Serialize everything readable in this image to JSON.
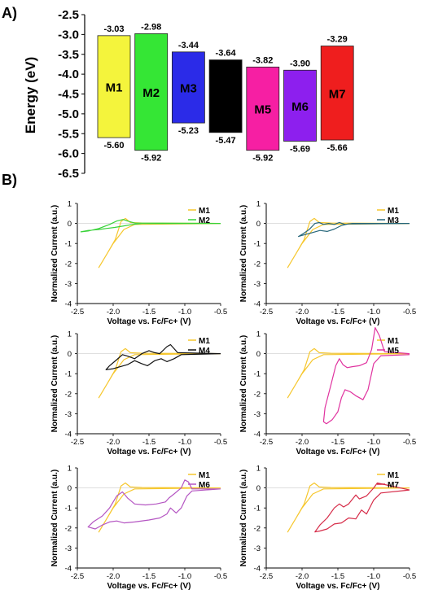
{
  "panel_labels": {
    "a": "A)",
    "b": "B)"
  },
  "chart_data": [
    {
      "type": "bar",
      "panel": "A",
      "ylabel": "Energy (eV)",
      "ylim": [
        -6.5,
        -2.5
      ],
      "yticks": [
        "-2.5",
        "-3.0",
        "-3.5",
        "-4.0",
        "-4.5",
        "-5.0",
        "-5.5",
        "-6.0",
        "-6.5"
      ],
      "categories": [
        "M1",
        "M2",
        "M3",
        "M4",
        "M5",
        "M6",
        "M7"
      ],
      "lumo": [
        -3.03,
        -2.98,
        -3.44,
        -3.64,
        -3.82,
        -3.9,
        -3.29
      ],
      "homo": [
        -5.6,
        -5.92,
        -5.23,
        -5.47,
        -5.92,
        -5.69,
        -5.66
      ],
      "lumo_labels": [
        "-3.03",
        "-2.98",
        "-3.44",
        "-3.64",
        "-3.82",
        "-3.90",
        "-3.29"
      ],
      "homo_labels": [
        "-5.60",
        "-5.92",
        "-5.23",
        "-5.47",
        "-5.92",
        "-5.69",
        "-5.66"
      ],
      "bar_labels": [
        "M1",
        "M2",
        "M3",
        "",
        "M5",
        "M6",
        "M7"
      ],
      "colors": [
        "#f4f43c",
        "#35e635",
        "#2b2be8",
        "#000000",
        "#f61fa3",
        "#8d1fee",
        "#ef1e1e"
      ]
    },
    {
      "type": "line",
      "panel": "B1",
      "xlabel": "Voltage vs. Fc/Fc+ (V)",
      "ylabel": "Normalized Current (a.u.)",
      "xlim": [
        -2.5,
        -0.5
      ],
      "ylim": [
        -4,
        1
      ],
      "xticks": [
        "-2.5",
        "-2.0",
        "-1.5",
        "-1.0",
        "-0.5"
      ],
      "yticks": [
        "1",
        "0",
        "-1",
        "-2",
        "-3",
        "-4"
      ],
      "series": [
        {
          "name": "M1",
          "color": "#f6c72e",
          "x": [
            -0.5,
            -1.7,
            -1.85,
            -2.0,
            -2.15,
            -2.2,
            -2.1,
            -1.97,
            -1.89,
            -1.83,
            -1.76,
            -1.6,
            -0.5
          ],
          "y": [
            0.0,
            -0.05,
            -0.3,
            -1.0,
            -1.9,
            -2.2,
            -1.6,
            -0.8,
            0.1,
            0.25,
            0.05,
            0.02,
            0.0
          ]
        },
        {
          "name": "M2",
          "color": "#39d239",
          "x": [
            -0.5,
            -1.6,
            -1.73,
            -1.85,
            -1.98,
            -2.1,
            -2.2,
            -2.35,
            -2.45,
            -2.35,
            -2.2,
            -2.05,
            -1.95,
            -1.86,
            -1.8,
            -1.7,
            -0.5
          ],
          "y": [
            0.0,
            0.0,
            -0.05,
            -0.12,
            -0.2,
            -0.25,
            -0.3,
            -0.35,
            -0.42,
            -0.38,
            -0.25,
            -0.05,
            0.12,
            0.2,
            0.12,
            0.02,
            0.0
          ]
        }
      ]
    },
    {
      "type": "line",
      "panel": "B2",
      "xlabel": "Voltage vs. Fc/Fc+ (V)",
      "ylabel": "Normalized Current (a.u.)",
      "xlim": [
        -2.5,
        -0.5
      ],
      "ylim": [
        -4,
        1
      ],
      "xticks": [
        "-2.5",
        "-2.0",
        "-1.5",
        "-1.0",
        "-0.5"
      ],
      "yticks": [
        "1",
        "0",
        "-1",
        "-2",
        "-3",
        "-4"
      ],
      "series": [
        {
          "name": "M1",
          "color": "#f6c72e",
          "x": [
            -0.5,
            -1.7,
            -1.85,
            -2.0,
            -2.15,
            -2.2,
            -2.1,
            -1.97,
            -1.89,
            -1.83,
            -1.76,
            -1.6,
            -0.5
          ],
          "y": [
            0.0,
            -0.05,
            -0.3,
            -1.0,
            -1.9,
            -2.2,
            -1.6,
            -0.8,
            0.1,
            0.25,
            0.05,
            0.02,
            0.0
          ]
        },
        {
          "name": "M3",
          "color": "#26667a",
          "x": [
            -0.5,
            -1.35,
            -1.45,
            -1.55,
            -1.65,
            -1.75,
            -1.85,
            -1.95,
            -2.05,
            -1.98,
            -1.9,
            -1.82,
            -1.76,
            -1.7,
            -1.63,
            -1.55,
            -1.48,
            -1.4,
            -1.3,
            -0.5
          ],
          "y": [
            0.0,
            -0.02,
            -0.1,
            -0.28,
            -0.4,
            -0.35,
            -0.45,
            -0.55,
            -0.65,
            -0.5,
            -0.3,
            0.0,
            0.05,
            -0.05,
            0.0,
            -0.05,
            0.05,
            -0.05,
            0.0,
            0.0
          ]
        }
      ]
    },
    {
      "type": "line",
      "panel": "B3",
      "xlabel": "Voltage vs. Fc/Fc+ (V)",
      "ylabel": "Normalized Current (a.u.)",
      "xlim": [
        -2.5,
        -0.5
      ],
      "ylim": [
        -4,
        1
      ],
      "xticks": [
        "-2.5",
        "-2.0",
        "-1.5",
        "-1.0",
        "-0.5"
      ],
      "yticks": [
        "1",
        "0",
        "-1",
        "-2",
        "-3",
        "-4"
      ],
      "series": [
        {
          "name": "M1",
          "color": "#f6c72e",
          "x": [
            -0.5,
            -1.7,
            -1.85,
            -2.0,
            -2.15,
            -2.2,
            -2.1,
            -1.97,
            -1.89,
            -1.83,
            -1.76,
            -1.6,
            -0.5
          ],
          "y": [
            0.0,
            -0.05,
            -0.3,
            -1.0,
            -1.9,
            -2.2,
            -1.6,
            -0.8,
            0.1,
            0.25,
            0.05,
            0.02,
            0.0
          ]
        },
        {
          "name": "M4",
          "color": "#111111",
          "x": [
            -0.5,
            -1.05,
            -1.15,
            -1.25,
            -1.33,
            -1.42,
            -1.52,
            -1.6,
            -1.7,
            -1.8,
            -1.9,
            -2.0,
            -2.1,
            -2.05,
            -1.95,
            -1.87,
            -1.8,
            -1.7,
            -1.6,
            -1.5,
            -1.42,
            -1.35,
            -1.25,
            -1.2,
            -1.1,
            -0.5
          ],
          "y": [
            0.0,
            -0.05,
            -0.25,
            -0.4,
            -0.25,
            -0.35,
            -0.6,
            -0.5,
            -0.35,
            -0.55,
            -0.65,
            -0.75,
            -0.8,
            -0.6,
            -0.3,
            -0.05,
            -0.12,
            -0.25,
            0.0,
            0.15,
            0.05,
            0.0,
            0.35,
            0.45,
            0.05,
            0.0
          ]
        }
      ]
    },
    {
      "type": "line",
      "panel": "B4",
      "xlabel": "Voltage vs. Fc/Fc+ (V)",
      "ylabel": "Normalized Current (a.u.)",
      "xlim": [
        -2.5,
        -0.5
      ],
      "ylim": [
        -4,
        1
      ],
      "xticks": [
        "-2.5",
        "-2.0",
        "-1.5",
        "-1.0",
        "-0.5"
      ],
      "yticks": [
        "1",
        "0",
        "-1",
        "-2",
        "-3",
        "-4"
      ],
      "series": [
        {
          "name": "M1",
          "color": "#f6c72e",
          "x": [
            -0.5,
            -1.7,
            -1.85,
            -2.0,
            -2.15,
            -2.2,
            -2.1,
            -1.97,
            -1.89,
            -1.83,
            -1.76,
            -1.6,
            -0.5
          ],
          "y": [
            0.0,
            -0.05,
            -0.3,
            -1.0,
            -1.9,
            -2.2,
            -1.6,
            -0.8,
            0.1,
            0.25,
            0.05,
            0.02,
            0.0
          ]
        },
        {
          "name": "M5",
          "color": "#e0339f",
          "x": [
            -0.5,
            -0.9,
            -1.0,
            -1.08,
            -1.15,
            -1.25,
            -1.33,
            -1.4,
            -1.45,
            -1.5,
            -1.58,
            -1.66,
            -1.7,
            -1.68,
            -1.6,
            -1.53,
            -1.48,
            -1.43,
            -1.37,
            -1.3,
            -1.2,
            -1.1,
            -1.03,
            -0.98,
            -0.92,
            -0.85,
            -0.5
          ],
          "y": [
            -0.05,
            -0.1,
            -0.5,
            -1.8,
            -2.3,
            -2.1,
            -1.9,
            -1.8,
            -2.2,
            -2.9,
            -3.3,
            -3.5,
            -3.4,
            -2.7,
            -1.6,
            -0.6,
            -0.25,
            -0.55,
            -0.7,
            -0.65,
            -0.6,
            -0.45,
            0.2,
            1.3,
            0.9,
            0.1,
            0.0
          ]
        }
      ]
    },
    {
      "type": "line",
      "panel": "B5",
      "xlabel": "Voltage vs. Fc/Fc+ (V)",
      "ylabel": "Normalized Current (a.u.)",
      "xlim": [
        -2.5,
        -0.5
      ],
      "ylim": [
        -4,
        1
      ],
      "xticks": [
        "-2.5",
        "-2.0",
        "-1.5",
        "-1.0",
        "-0.5"
      ],
      "yticks": [
        "1",
        "0",
        "-1",
        "-2",
        "-3",
        "-4"
      ],
      "series": [
        {
          "name": "M1",
          "color": "#f6c72e",
          "x": [
            -0.5,
            -1.7,
            -1.85,
            -2.0,
            -2.15,
            -2.2,
            -2.1,
            -1.97,
            -1.89,
            -1.83,
            -1.76,
            -1.6,
            -0.5
          ],
          "y": [
            0.0,
            -0.05,
            -0.3,
            -1.0,
            -1.9,
            -2.2,
            -1.6,
            -0.8,
            0.1,
            0.25,
            0.05,
            0.02,
            0.0
          ]
        },
        {
          "name": "M6",
          "color": "#b455c2",
          "x": [
            -0.5,
            -0.9,
            -0.97,
            -1.05,
            -1.12,
            -1.2,
            -1.25,
            -1.35,
            -1.5,
            -1.7,
            -1.85,
            -1.95,
            -2.05,
            -2.15,
            -2.25,
            -2.35,
            -2.28,
            -2.15,
            -2.05,
            -1.95,
            -1.87,
            -1.8,
            -1.7,
            -1.55,
            -1.4,
            -1.27,
            -1.22,
            -1.15,
            -1.05,
            -1.0,
            -0.95,
            -0.9,
            -0.5
          ],
          "y": [
            -0.05,
            -0.15,
            -0.4,
            -1.0,
            -1.25,
            -1.0,
            -1.3,
            -1.5,
            -1.6,
            -1.7,
            -1.75,
            -1.65,
            -1.7,
            -1.85,
            -2.05,
            -1.95,
            -1.7,
            -1.4,
            -1.0,
            -0.4,
            -0.2,
            -0.5,
            -0.8,
            -0.85,
            -0.8,
            -0.7,
            -0.5,
            -0.3,
            0.0,
            0.4,
            0.3,
            -0.05,
            -0.05
          ]
        }
      ]
    },
    {
      "type": "line",
      "panel": "B6",
      "xlabel": "Voltage vs. Fc/Fc+ (V)",
      "ylabel": "Normalized Current (a.u.)",
      "xlim": [
        -2.5,
        -0.5
      ],
      "ylim": [
        -4,
        1
      ],
      "xticks": [
        "-2.5",
        "-2.0",
        "-1.5",
        "-1.0",
        "-0.5"
      ],
      "yticks": [
        "1",
        "0",
        "-1",
        "-2",
        "-3",
        "-4"
      ],
      "series": [
        {
          "name": "M1",
          "color": "#f6c72e",
          "x": [
            -0.5,
            -1.7,
            -1.85,
            -2.0,
            -2.15,
            -2.2,
            -2.1,
            -1.97,
            -1.89,
            -1.83,
            -1.76,
            -1.6,
            -0.5
          ],
          "y": [
            0.0,
            -0.05,
            -0.3,
            -1.0,
            -1.9,
            -2.2,
            -1.6,
            -0.8,
            0.1,
            0.25,
            0.05,
            0.02,
            0.0
          ]
        },
        {
          "name": "M7",
          "color": "#d62b48",
          "x": [
            -0.5,
            -0.9,
            -1.0,
            -1.1,
            -1.17,
            -1.25,
            -1.35,
            -1.45,
            -1.55,
            -1.65,
            -1.75,
            -1.82,
            -1.75,
            -1.65,
            -1.55,
            -1.48,
            -1.42,
            -1.35,
            -1.25,
            -1.2,
            -1.1,
            -1.0,
            -0.95,
            -0.5
          ],
          "y": [
            -0.1,
            -0.25,
            -0.6,
            -1.3,
            -1.1,
            -1.55,
            -1.5,
            -1.75,
            -1.8,
            -2.05,
            -2.15,
            -2.2,
            -1.85,
            -1.5,
            -1.0,
            -0.8,
            -0.95,
            -0.8,
            -0.35,
            -0.55,
            -0.4,
            0.0,
            0.25,
            -0.1
          ]
        }
      ]
    }
  ]
}
